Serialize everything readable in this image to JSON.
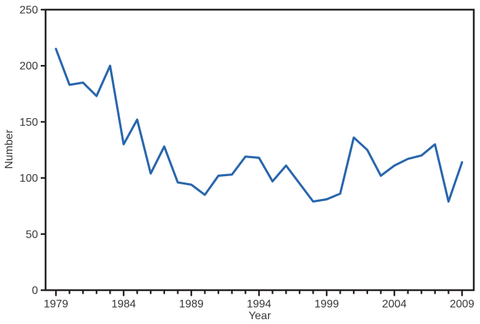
{
  "chart_data": {
    "type": "line",
    "title": "",
    "xlabel": "Year",
    "ylabel": "Number",
    "x": [
      1979,
      1980,
      1981,
      1982,
      1983,
      1984,
      1985,
      1986,
      1987,
      1988,
      1989,
      1990,
      1991,
      1992,
      1993,
      1994,
      1995,
      1996,
      1997,
      1998,
      1999,
      2000,
      2001,
      2002,
      2003,
      2004,
      2005,
      2006,
      2007,
      2008,
      2009
    ],
    "values": [
      215,
      183,
      185,
      173,
      200,
      130,
      152,
      104,
      128,
      96,
      94,
      85,
      102,
      103,
      119,
      118,
      97,
      111,
      95,
      79,
      81,
      86,
      136,
      125,
      102,
      111,
      117,
      120,
      130,
      79,
      114
    ],
    "ylim": [
      0,
      250
    ],
    "yticks": [
      0,
      50,
      100,
      150,
      200,
      250
    ],
    "xticks_labeled": [
      1979,
      1984,
      1989,
      1994,
      1999,
      2004,
      2009
    ],
    "xticks_minor_every_years": 1,
    "grid": false,
    "legend": "none",
    "line_color": "#2866ac",
    "axis_color": "#231f20",
    "text_color": "#383838"
  }
}
